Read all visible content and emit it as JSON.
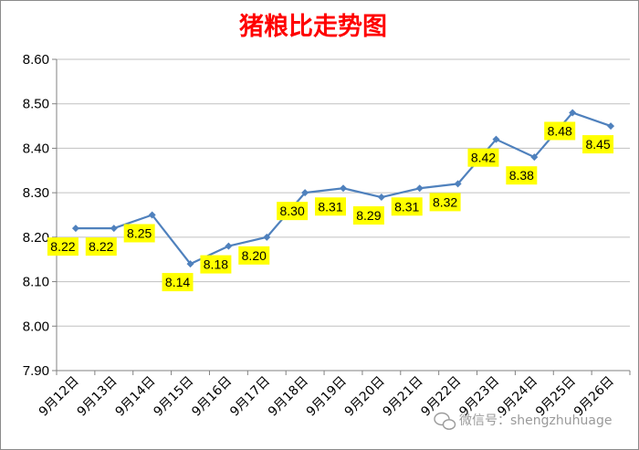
{
  "chart_data": {
    "type": "line",
    "title": "猪粮比走势图",
    "categories": [
      "9月12日",
      "9月13日",
      "9月14日",
      "9月15日",
      "9月16日",
      "9月17日",
      "9月18日",
      "9月19日",
      "9月20日",
      "9月21日",
      "9月22日",
      "9月23日",
      "9月24日",
      "9月25日",
      "9月26日"
    ],
    "series": [
      {
        "values": [
          8.22,
          8.22,
          8.25,
          8.14,
          8.18,
          8.2,
          8.3,
          8.31,
          8.29,
          8.31,
          8.32,
          8.42,
          8.38,
          8.48,
          8.45
        ],
        "data_labels": [
          "8.22",
          "8.22",
          "8.25",
          "8.14",
          "8.18",
          "8.20",
          "8.30",
          "8.31",
          "8.29",
          "8.31",
          "8.32",
          "8.42",
          "8.38",
          "8.48",
          "8.45"
        ]
      }
    ],
    "ylim": [
      7.9,
      8.6
    ],
    "yticks": [
      "7.90",
      "8.00",
      "8.10",
      "8.20",
      "8.30",
      "8.40",
      "8.50",
      "8.60"
    ],
    "grid": true,
    "legend": "none",
    "colors": {
      "line": "#4f81bd",
      "label_bg": "#ffff00",
      "grid": "#c0c0c0",
      "title": "#ff0000"
    }
  },
  "watermark": {
    "text": "微信号：shengzhuhuage",
    "icon": "wechat-icon"
  }
}
